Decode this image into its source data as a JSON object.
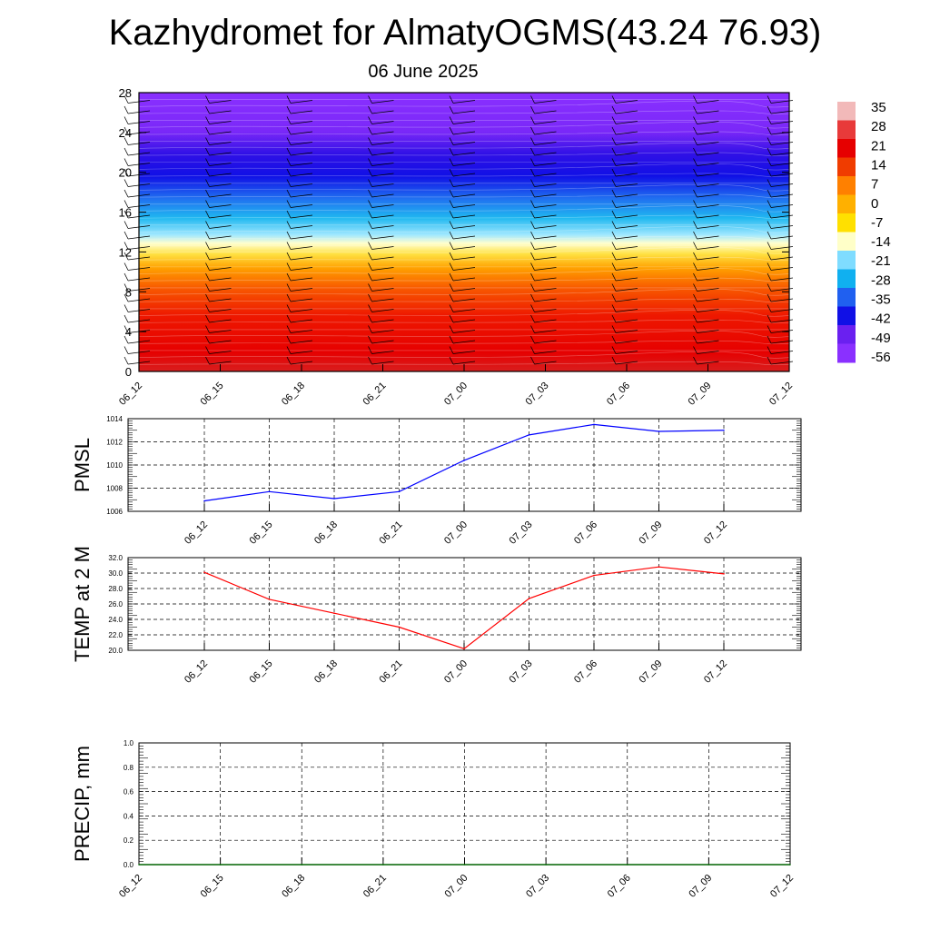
{
  "title": "Kazhydromet for AlmatyOGMS(43.24 76.93)",
  "date": "06 June 2025",
  "colorbar": {
    "labels": [
      "35",
      "28",
      "21",
      "14",
      "7",
      "0",
      "-7",
      "-14",
      "-21",
      "-28",
      "-35",
      "-42",
      "-49",
      "-56"
    ],
    "stops": [
      "#f2b9b9",
      "#e83a3a",
      "#e60000",
      "#f03c00",
      "#ff8000",
      "#ffb000",
      "#ffe000",
      "#ffffc8",
      "#7fdcff",
      "#10b0f0",
      "#2060f0",
      "#1010e6",
      "#6a20f0",
      "#8a30ff"
    ]
  },
  "chart_data": [
    {
      "type": "heatmap",
      "name": "temperature-height",
      "x_ticks": [
        "06_12",
        "06_15",
        "06_18",
        "06_21",
        "07_00",
        "07_03",
        "07_06",
        "07_09",
        "07_12"
      ],
      "y_ticks": [
        "0",
        "4",
        "8",
        "12",
        "16",
        "20",
        "24",
        "28"
      ],
      "ylim": [
        0,
        28
      ],
      "value_range": [
        -56,
        35
      ],
      "colors": {
        "surface": "#e6201a",
        "mid": "#f2b400",
        "upper": "#1a10e6",
        "top": "#8a30ff"
      }
    },
    {
      "type": "line",
      "name": "pmsl",
      "ylabel": "PMSL",
      "x": [
        "06_12",
        "06_15",
        "06_18",
        "06_21",
        "07_00",
        "07_03",
        "07_06",
        "07_09",
        "07_12"
      ],
      "values": [
        1006.9,
        1007.7,
        1007.1,
        1007.7,
        1010.4,
        1012.6,
        1013.5,
        1012.9,
        1013.0
      ],
      "ylim": [
        1006,
        1014
      ],
      "y_ticks": [
        "1006",
        "1008",
        "1010",
        "1012",
        "1014"
      ],
      "color": "#0000ff",
      "grid": true
    },
    {
      "type": "line",
      "name": "temp2m",
      "ylabel": "TEMP at 2 M",
      "x": [
        "06_12",
        "06_15",
        "06_18",
        "06_21",
        "07_00",
        "07_03",
        "07_06",
        "07_09",
        "07_12"
      ],
      "values": [
        30.1,
        26.6,
        24.8,
        23.0,
        20.2,
        26.7,
        29.7,
        30.8,
        29.9
      ],
      "ylim": [
        20,
        32
      ],
      "y_ticks": [
        "20.0",
        "22.0",
        "24.0",
        "26.0",
        "28.0",
        "30.0",
        "32.0"
      ],
      "color": "#ff0000",
      "grid": true
    },
    {
      "type": "line",
      "name": "precip",
      "ylabel": "PRECIP, mm",
      "x_ticks": [
        "06_12",
        "06_15",
        "06_18",
        "06_21",
        "07_00",
        "07_03",
        "07_06",
        "07_09",
        "07_12"
      ],
      "values": [
        0,
        0,
        0,
        0,
        0,
        0,
        0,
        0,
        0
      ],
      "ylim": [
        0,
        1
      ],
      "y_ticks": [
        "0.0",
        "0.2",
        "0.4",
        "0.6",
        "0.8",
        "1.0"
      ],
      "color": "#006400",
      "grid": true
    }
  ]
}
